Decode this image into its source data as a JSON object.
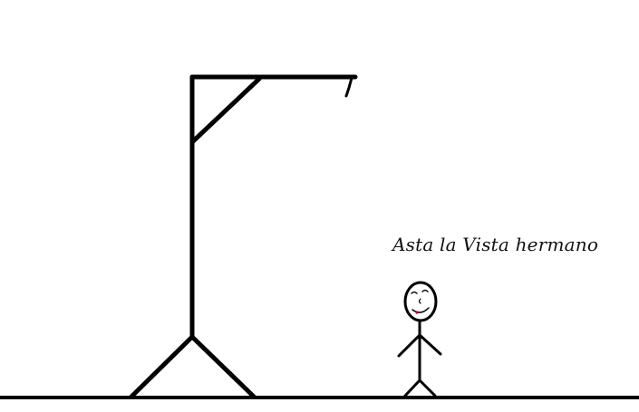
{
  "scene": {
    "caption": "Asta la Vista hermano",
    "ink_color": "#000000",
    "background_color": "#ffffff",
    "lip_color": "#b0003a"
  }
}
